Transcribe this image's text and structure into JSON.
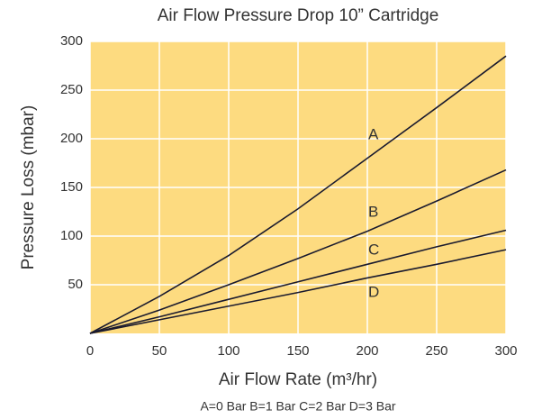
{
  "chart_data": {
    "type": "line",
    "title": "Air Flow Pressure Drop 10” Cartridge",
    "x_label": "Air Flow Rate (m³/hr)",
    "y_label": "Pressure Loss (mbar)",
    "note": "A=0 Bar  B=1 Bar C=2 Bar D=3 Bar",
    "x": [
      0,
      50,
      100,
      150,
      200,
      250,
      300
    ],
    "series": [
      {
        "name": "A",
        "color": "#1a1a2e",
        "values": [
          0,
          38,
          80,
          128,
          180,
          232,
          285
        ]
      },
      {
        "name": "B",
        "color": "#1a1a2e",
        "values": [
          0,
          24,
          50,
          77,
          105,
          136,
          168
        ]
      },
      {
        "name": "C",
        "color": "#1a1a2e",
        "values": [
          0,
          17,
          35,
          53,
          71,
          89,
          106
        ]
      },
      {
        "name": "D",
        "color": "#1a1a2e",
        "values": [
          0,
          14,
          28,
          42,
          57,
          71,
          86
        ]
      }
    ],
    "xlim": [
      0,
      300
    ],
    "xticks": [
      0,
      50,
      100,
      150,
      200,
      250,
      300
    ],
    "ylim": [
      0,
      300
    ],
    "yticks": [
      50,
      100,
      150,
      200,
      250,
      300
    ],
    "grid": true,
    "background": "#fddb80"
  }
}
